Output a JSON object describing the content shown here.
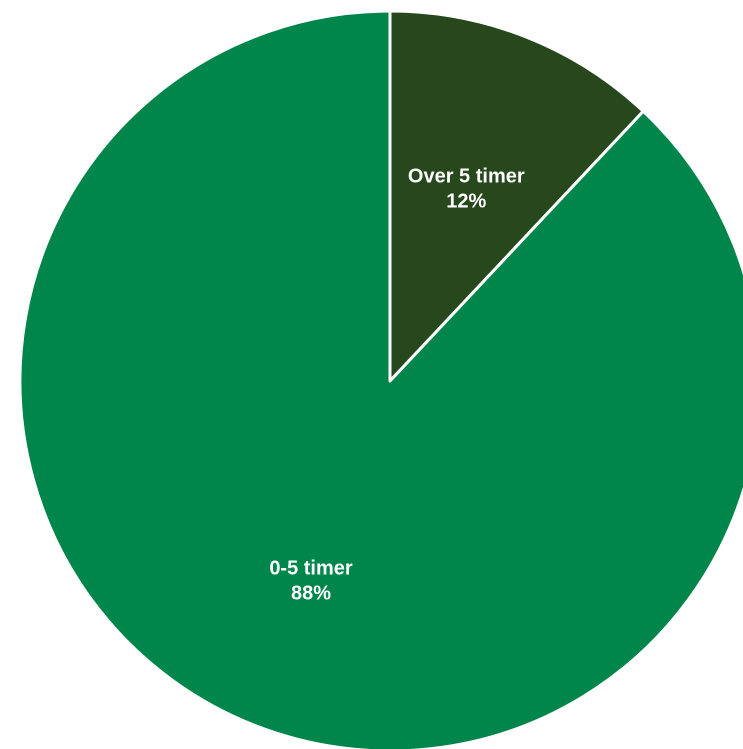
{
  "chart_data": {
    "type": "pie",
    "title": "",
    "start_angle_deg": 0,
    "direction": "clockwise",
    "slices": [
      {
        "label": "Over 5 timer",
        "value": 12,
        "value_label": "12%",
        "color": "#27471c"
      },
      {
        "label": "0-5 timer",
        "value": 88,
        "value_label": "88%",
        "color": "#00854a"
      }
    ]
  }
}
